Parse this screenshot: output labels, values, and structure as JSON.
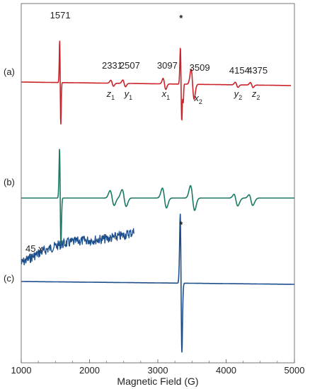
{
  "chart_data": {
    "type": "line",
    "xlabel": "Magnetic Field (G)",
    "xlim": [
      1000,
      5000
    ],
    "xticks": [
      1000,
      2000,
      3000,
      4000,
      5000
    ],
    "grid": false,
    "colors": {
      "a": "#cc2229",
      "b": "#1b7a66",
      "c": "#1d4f8c"
    },
    "series": [
      {
        "name": "(a)",
        "peaks": [
          {
            "field": 1571,
            "amplitude": 1.0,
            "label": "1571"
          },
          {
            "field": 2331,
            "amplitude": 0.07,
            "label": "2331",
            "site": "z",
            "sub": "1"
          },
          {
            "field": 2507,
            "amplitude": 0.08,
            "label": "2507",
            "site": "y",
            "sub": "1"
          },
          {
            "field": 3097,
            "amplitude": 0.13,
            "label": "3097",
            "site": "x",
            "sub": "1"
          },
          {
            "field": 3340,
            "amplitude": 1.4,
            "label": "*"
          },
          {
            "field": 3509,
            "amplitude": 0.35,
            "label": "3509",
            "site": "x",
            "sub": "2"
          },
          {
            "field": 4154,
            "amplitude": 0.06,
            "label": "4154",
            "site": "y",
            "sub": "2"
          },
          {
            "field": 4375,
            "amplitude": 0.06,
            "label": "4375",
            "site": "z",
            "sub": "2"
          }
        ]
      },
      {
        "name": "(b)",
        "peaks": [
          {
            "field": 1571,
            "amplitude": 1.0
          },
          {
            "field": 2331,
            "amplitude": 0.15
          },
          {
            "field": 2507,
            "amplitude": 0.17
          },
          {
            "field": 3097,
            "amplitude": 0.2
          },
          {
            "field": 3509,
            "amplitude": 0.25
          },
          {
            "field": 4154,
            "amplitude": 0.1
          },
          {
            "field": 4375,
            "amplitude": 0.09
          }
        ]
      },
      {
        "name": "(c)",
        "peaks": [
          {
            "field": 3340,
            "amplitude": 1.0,
            "label": "*"
          }
        ],
        "inset": {
          "label": "45 x",
          "range": [
            1000,
            2650
          ]
        }
      }
    ]
  }
}
